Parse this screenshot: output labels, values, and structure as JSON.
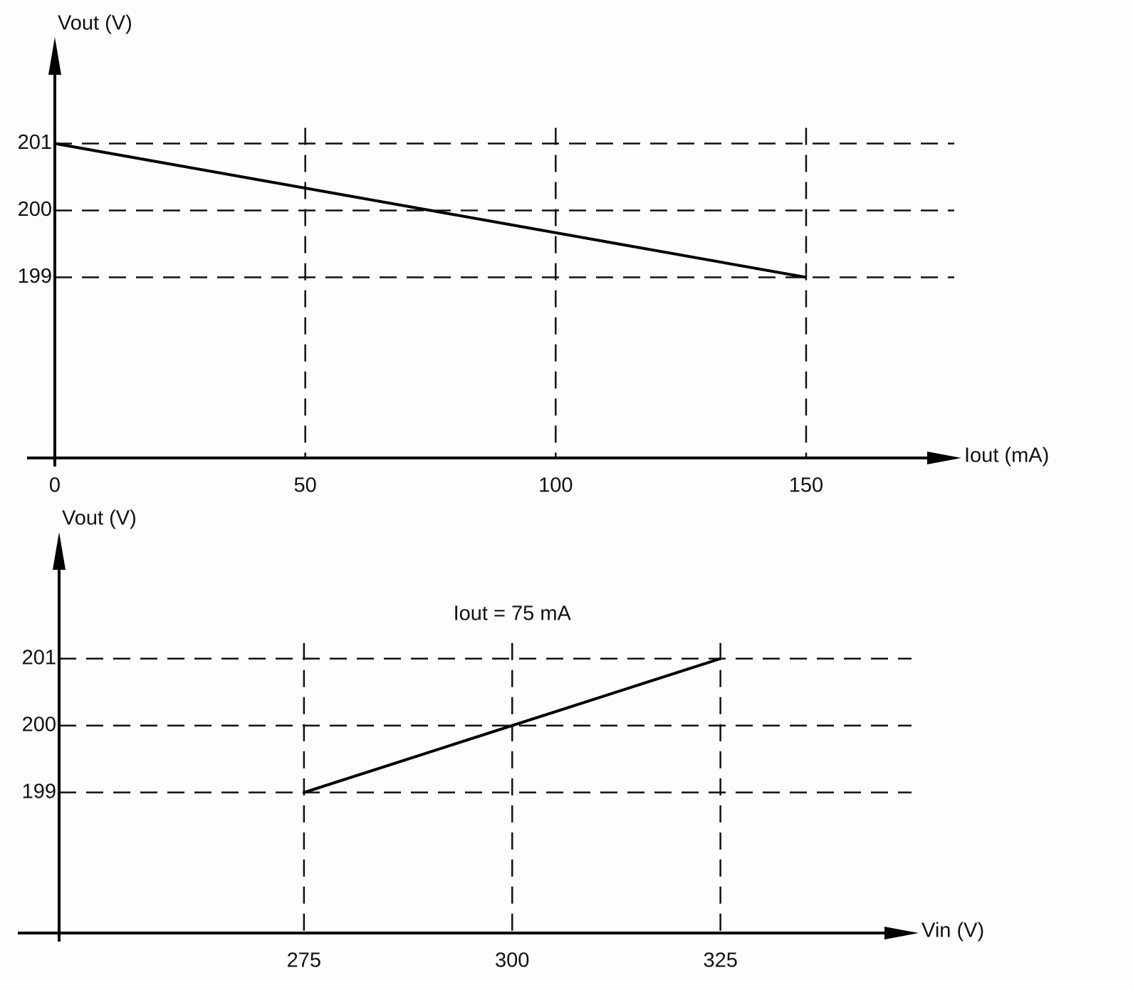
{
  "chart_data": [
    {
      "type": "line",
      "xlabel": "Iout (mA)",
      "ylabel": "Vout (V)",
      "x": [
        0,
        150
      ],
      "series": [
        {
          "values": [
            201,
            199
          ],
          "color": "#000000"
        }
      ],
      "xlim": [
        0,
        181
      ],
      "ylim": [
        196.3,
        202.4
      ],
      "xticks": [
        0,
        50,
        100,
        150
      ],
      "yticks": [
        199,
        200,
        201
      ],
      "grid": true
    },
    {
      "type": "line",
      "xlabel": "Vin (V)",
      "ylabel": "Vout (V)",
      "annotation": "Iout = 75 mA",
      "x": [
        275,
        300,
        325
      ],
      "series": [
        {
          "values": [
            199,
            200,
            201
          ],
          "color": "#000000"
        }
      ],
      "xlim": [
        245.6,
        348.8
      ],
      "ylim": [
        196.9,
        202.7
      ],
      "xticks": [
        275,
        300,
        325
      ],
      "yticks": [
        199,
        200,
        201
      ],
      "grid": true
    }
  ]
}
